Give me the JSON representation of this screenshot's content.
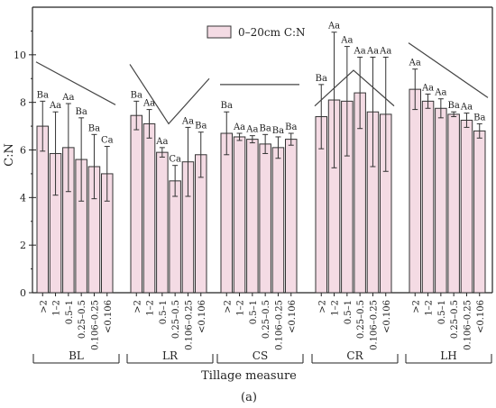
{
  "chart_data": {
    "type": "bar",
    "xlabel": "Tillage measure",
    "ylabel": "C:N",
    "ylim": [
      0,
      12
    ],
    "yticks": [
      0,
      2,
      4,
      6,
      8,
      10
    ],
    "legend": {
      "label": "0–20cm C:N",
      "placement": "top-center"
    },
    "panel_label": "(a)",
    "bar_color": "#f4dbe4",
    "bar_edge_color": "#333333",
    "categories": [
      ">2",
      "1–2",
      "0.5–1",
      "0.25–0.5",
      "0.106–0.25",
      "<0.106"
    ],
    "groups": [
      {
        "name": "BL",
        "values": [
          7.0,
          5.85,
          6.1,
          5.6,
          5.3,
          5.0
        ],
        "errors": [
          1.05,
          1.75,
          1.85,
          1.75,
          1.35,
          1.15
        ],
        "labels": [
          "Ba",
          "Aa",
          "Aa",
          "Ba",
          "Ba",
          "Ca"
        ],
        "trend": "down",
        "trend_range": [
          9.7,
          7.9
        ]
      },
      {
        "name": "LR",
        "values": [
          7.45,
          7.1,
          5.9,
          4.7,
          5.5,
          5.8
        ],
        "errors": [
          0.6,
          0.6,
          0.2,
          0.65,
          1.45,
          0.95
        ],
        "labels": [
          "Ba",
          "Aa",
          "Aa",
          "Ca",
          "Aa",
          "Ba"
        ],
        "trend": "v",
        "trend_range": [
          9.6,
          7.1,
          9.0
        ]
      },
      {
        "name": "CS",
        "values": [
          6.7,
          6.55,
          6.45,
          6.25,
          6.1,
          6.45
        ],
        "errors": [
          0.9,
          0.15,
          0.15,
          0.4,
          0.45,
          0.25
        ],
        "labels": [
          "Ba",
          "Aa",
          "Aa",
          "Ba",
          "Ba",
          "Ba"
        ],
        "trend": "flat",
        "trend_range": [
          8.75,
          8.75
        ]
      },
      {
        "name": "CR",
        "values": [
          7.4,
          8.1,
          8.05,
          8.4,
          7.6,
          7.5
        ],
        "errors": [
          1.35,
          2.85,
          2.3,
          1.5,
          2.3,
          2.4
        ],
        "labels": [
          "Ba",
          "Aa",
          "Aa",
          "Aa",
          "Aa",
          "Aa"
        ],
        "trend": "peak",
        "trend_range": [
          7.85,
          9.35,
          7.85
        ]
      },
      {
        "name": "LH",
        "values": [
          8.55,
          8.05,
          7.75,
          7.5,
          7.25,
          6.8
        ],
        "errors": [
          0.85,
          0.3,
          0.4,
          0.1,
          0.3,
          0.3
        ],
        "labels": [
          "Aa",
          "Aa",
          "Aa",
          "Ba",
          "Aa",
          "Ba"
        ],
        "trend": "down",
        "trend_range": [
          10.5,
          8.2
        ]
      }
    ]
  }
}
